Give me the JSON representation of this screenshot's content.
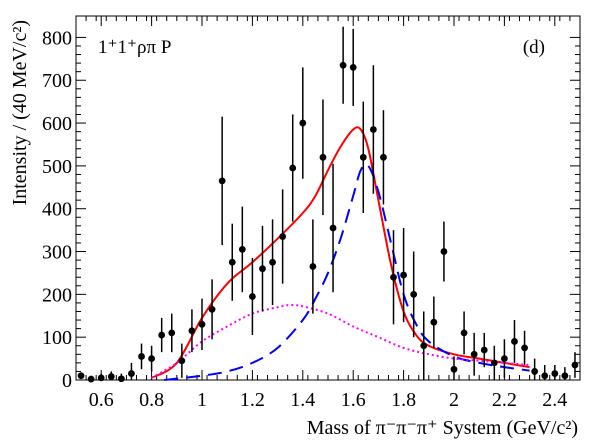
{
  "chart_data": {
    "type": "scatter",
    "annotations": {
      "left": "1⁺1⁺ρπ P",
      "right": "(d)"
    },
    "xlabel": "Mass of π⁻π⁻π⁺ System (GeV/c²)",
    "ylabel": "Intensity / (40 MeV/c²)",
    "xlim": [
      0.5,
      2.5
    ],
    "ylim": [
      0,
      850
    ],
    "x_ticks": [
      0.6,
      0.8,
      1,
      1.2,
      1.4,
      1.6,
      1.8,
      2,
      2.2,
      2.4
    ],
    "y_ticks": [
      0,
      100,
      200,
      300,
      400,
      500,
      600,
      700,
      800
    ],
    "colors": {
      "total": "#ff0000",
      "resonance": "#0000ff",
      "background": "#ff00ff",
      "points": "#000000"
    },
    "series": [
      {
        "style": "points-with-error-bars",
        "x": [
          0.52,
          0.56,
          0.6,
          0.64,
          0.68,
          0.72,
          0.76,
          0.8,
          0.84,
          0.88,
          0.92,
          0.96,
          1.0,
          1.04,
          1.08,
          1.12,
          1.16,
          1.2,
          1.24,
          1.28,
          1.32,
          1.36,
          1.4,
          1.44,
          1.48,
          1.52,
          1.56,
          1.6,
          1.64,
          1.68,
          1.72,
          1.76,
          1.8,
          1.84,
          1.88,
          1.92,
          1.96,
          2.0,
          2.04,
          2.08,
          2.12,
          2.16,
          2.2,
          2.24,
          2.28,
          2.32,
          2.36,
          2.4,
          2.44,
          2.48
        ],
        "y": [
          10,
          2,
          5,
          8,
          3,
          15,
          55,
          50,
          105,
          110,
          45,
          115,
          130,
          165,
          465,
          275,
          305,
          195,
          260,
          275,
          335,
          495,
          600,
          265,
          520,
          355,
          735,
          730,
          520,
          585,
          520,
          240,
          245,
          200,
          80,
          135,
          300,
          25,
          110,
          60,
          70,
          40,
          50,
          90,
          75,
          20,
          10,
          15,
          10,
          35
        ],
        "err": [
          8,
          8,
          10,
          12,
          12,
          25,
          30,
          30,
          40,
          45,
          40,
          50,
          60,
          70,
          150,
          90,
          100,
          90,
          100,
          100,
          110,
          125,
          130,
          110,
          135,
          150,
          90,
          90,
          130,
          150,
          110,
          110,
          110,
          100,
          80,
          60,
          70,
          30,
          50,
          50,
          40,
          40,
          45,
          50,
          40,
          30,
          25,
          20,
          20,
          30
        ]
      },
      {
        "style": "solid",
        "color": "#ff0000",
        "x": [
          0.8,
          0.9,
          1.0,
          1.1,
          1.2,
          1.3,
          1.4,
          1.45,
          1.5,
          1.55,
          1.6,
          1.63,
          1.66,
          1.7,
          1.75,
          1.8,
          1.85,
          1.9,
          2.0,
          2.1,
          2.2,
          2.3
        ],
        "y": [
          5,
          40,
          145,
          225,
          275,
          330,
          390,
          430,
          490,
          545,
          585,
          585,
          540,
          420,
          270,
          160,
          105,
          80,
          60,
          50,
          40,
          30
        ]
      },
      {
        "style": "long-dash",
        "color": "#0000ff",
        "x": [
          0.85,
          1.0,
          1.1,
          1.2,
          1.3,
          1.4,
          1.45,
          1.5,
          1.55,
          1.6,
          1.63,
          1.66,
          1.7,
          1.75,
          1.8,
          1.85,
          1.9,
          2.0,
          2.1,
          2.2,
          2.3
        ],
        "y": [
          0,
          10,
          20,
          40,
          75,
          140,
          190,
          250,
          330,
          430,
          490,
          500,
          440,
          320,
          200,
          130,
          90,
          55,
          40,
          30,
          22
        ]
      },
      {
        "style": "dotted",
        "color": "#ff00ff",
        "x": [
          0.8,
          0.9,
          1.0,
          1.1,
          1.2,
          1.3,
          1.35,
          1.4,
          1.5,
          1.6,
          1.7,
          1.8,
          1.9,
          2.0,
          2.1,
          2.2,
          2.3
        ],
        "y": [
          5,
          40,
          90,
          125,
          155,
          170,
          175,
          172,
          155,
          125,
          100,
          75,
          60,
          50,
          45,
          40,
          35
        ]
      }
    ]
  }
}
